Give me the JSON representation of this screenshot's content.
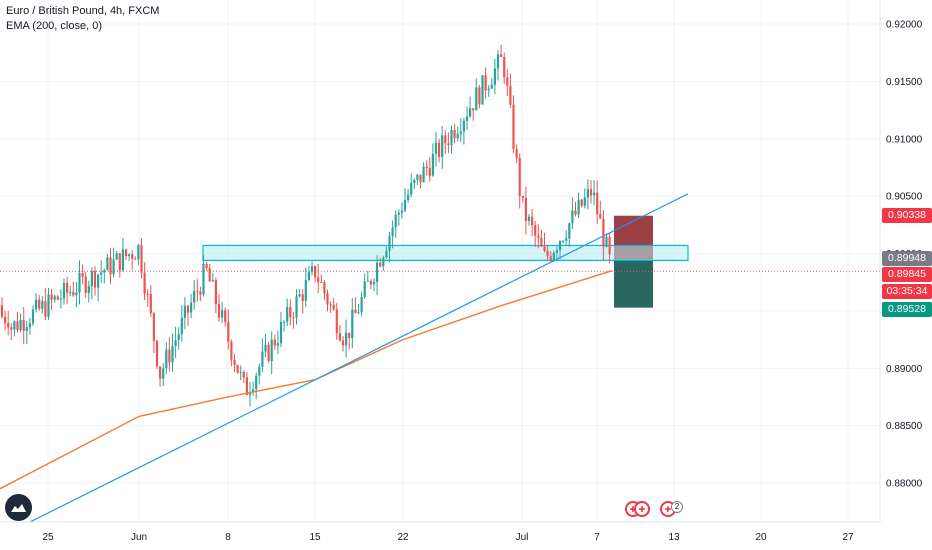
{
  "legend": {
    "symbol_line": "Euro / British Pound, 4h, FXCM",
    "indicator_line": "EMA (200, close, 0)"
  },
  "price_axis": {
    "labels": [
      "0.92000",
      "0.91500",
      "0.91000",
      "0.90500",
      "0.90000",
      "0.89000",
      "0.88500",
      "0.88000"
    ]
  },
  "time_axis": {
    "labels": [
      "25",
      "Jun",
      "8",
      "15",
      "22",
      "Jul",
      "7",
      "13",
      "20",
      "27"
    ]
  },
  "price_tags": {
    "stop": "0.90338",
    "entry": "0.89948",
    "current": "0.89845",
    "countdown": "03:35:34",
    "target": "0.89528"
  },
  "colors": {
    "up": "#26a69a",
    "down": "#ef5350",
    "ema": "#f57c2f",
    "trendline": "#2196f3",
    "zone_fill": "#b2ebf2",
    "zone_border": "#00bcd4",
    "stop_zone": "#8b1f28",
    "target_zone": "#1d5e57",
    "grid": "#f0f3fa"
  },
  "events": {
    "badge": "2",
    "icon": "uk-flag-icon"
  },
  "logo": "tradingview-logo-icon",
  "chart_data": {
    "type": "candlestick",
    "instrument": "Euro / British Pound",
    "timeframe": "4h",
    "source": "FXCM",
    "indicator": "EMA (200, close, 0)",
    "ylim": [
      0.8755,
      0.9215
    ],
    "x_tick_labels": [
      "25",
      "Jun",
      "8",
      "15",
      "22",
      "Jul",
      "7",
      "13",
      "20",
      "27"
    ],
    "last_price": 0.89845,
    "key_points": [
      {
        "label": "May 25",
        "close": 0.8935
      },
      {
        "label": "Jun 1",
        "close": 0.9005
      },
      {
        "label": "Jun 4",
        "close": 0.8895
      },
      {
        "label": "Jun 8",
        "close": 0.8985
      },
      {
        "label": "Jun 10",
        "close": 0.888
      },
      {
        "label": "Jun 15",
        "close": 0.8985
      },
      {
        "label": "Jun 18",
        "close": 0.8925
      },
      {
        "label": "Jun 22",
        "close": 0.9045
      },
      {
        "label": "Jun 29",
        "close": 0.917
      },
      {
        "label": "Jul 2",
        "close": 0.904
      },
      {
        "label": "Jul 3",
        "close": 0.8995
      },
      {
        "label": "Jul 6",
        "close": 0.9055
      },
      {
        "label": "Jul 8",
        "close": 0.89845
      }
    ],
    "ema_points": [
      {
        "label": "May 22",
        "value": 0.8795
      },
      {
        "label": "Jun 1",
        "value": 0.8858
      },
      {
        "label": "Jun 8",
        "value": 0.8875
      },
      {
        "label": "Jun 15",
        "value": 0.889
      },
      {
        "label": "Jun 22",
        "value": 0.8925
      },
      {
        "label": "Jun 29",
        "value": 0.8955
      },
      {
        "label": "Jul 8",
        "value": 0.8985
      }
    ],
    "support_resistance_zone": [
      0.8994,
      0.9007
    ],
    "trendline": [
      {
        "label": "May 22",
        "value": 0.8753
      },
      {
        "label": "Jul 13",
        "value": 0.9052
      }
    ],
    "position": {
      "stop": 0.90338,
      "entry": 0.89948,
      "target": 0.89528
    },
    "grid": true
  }
}
